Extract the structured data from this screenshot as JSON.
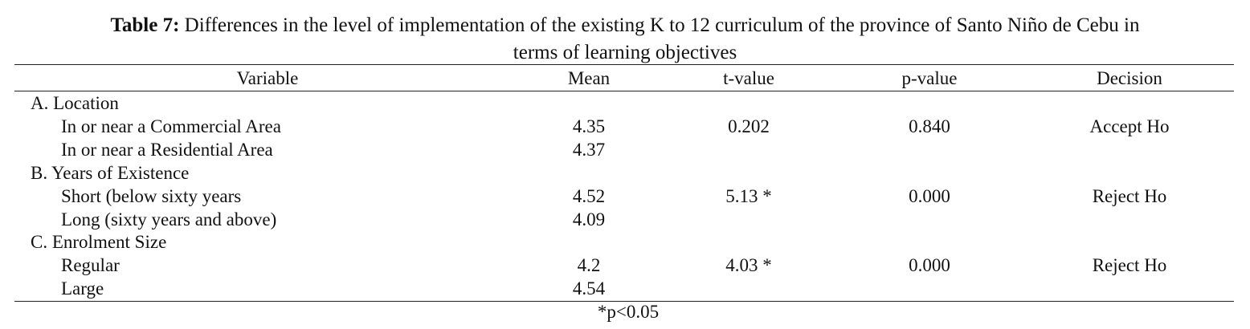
{
  "caption": {
    "label": "Table 7:",
    "lines": [
      "Differences in the level of implementation of the existing K to 12 curriculum of the province of Santo Niño de Cebu in",
      "terms of learning objectives"
    ]
  },
  "table": {
    "headers": [
      "Variable",
      "Mean",
      "t-value",
      "p-value",
      "Decision"
    ],
    "sections": [
      {
        "name": "A. Location",
        "rows": [
          {
            "variable": "In or near a Commercial Area",
            "mean": "4.35",
            "t_value": "0.202",
            "p_value": "0.840",
            "decision": "Accept Ho"
          },
          {
            "variable": "In or near a Residential Area",
            "mean": "4.37"
          }
        ]
      },
      {
        "name": "B. Years of Existence",
        "rows": [
          {
            "variable": "Short (below sixty years",
            "mean": "4.52",
            "t_value": "5.13 *",
            "p_value": "0.000",
            "decision": "Reject Ho"
          },
          {
            "variable": "Long (sixty years and above)",
            "mean": "4.09"
          }
        ]
      },
      {
        "name": "C. Enrolment Size",
        "rows": [
          {
            "variable": "Regular",
            "mean": "4.2",
            "t_value": "4.03 *",
            "p_value": "0.000",
            "decision": "Reject Ho"
          },
          {
            "variable": "Large",
            "mean": "4.54"
          }
        ]
      }
    ],
    "footnote": "*p<0.05"
  }
}
